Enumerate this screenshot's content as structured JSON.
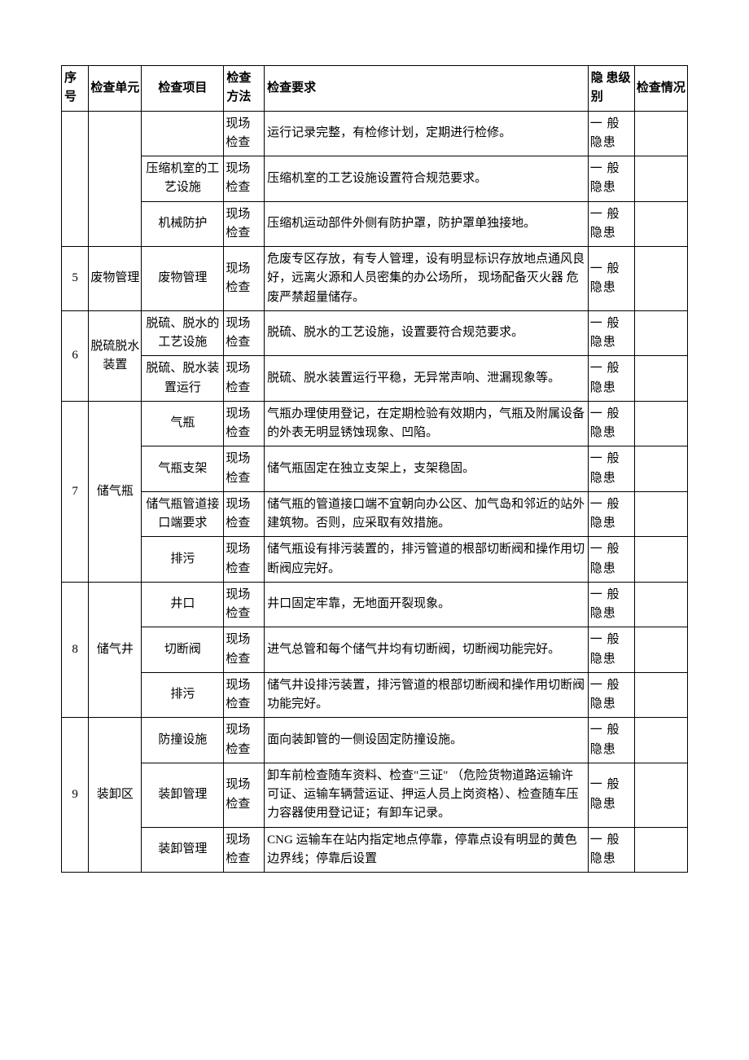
{
  "headers": {
    "seq": "序号",
    "unit": "检查单元",
    "item": "检查项目",
    "method": "检查方法",
    "req": "检查要求",
    "level": "隐 患级别",
    "status": "检查情况"
  },
  "rows": [
    {
      "seq": "",
      "unit": "",
      "item": "",
      "method": "现场检查",
      "req": "运行记录完整，有检修计划，定期进行检修。",
      "level": "一 般隐患",
      "status": ""
    },
    {
      "seq": "",
      "unit": "",
      "item": "压缩机室的工艺设施",
      "method": "现场检查",
      "req": "压缩机室的工艺设施设置符合规范要求。",
      "level": "一 般隐患",
      "status": ""
    },
    {
      "seq": "",
      "unit": "",
      "item": "机械防护",
      "method": "现场检查",
      "req": "压缩机运动部件外侧有防护罩，防护罩单独接地。",
      "level": "一 般隐患",
      "status": ""
    },
    {
      "seq": "5",
      "unit": "废物管理",
      "item": "废物管理",
      "method": "现场检查",
      "req": "危废专区存放，有专人管理，设有明显标识存放地点通风良好，远离火源和人员密集的办公场所， 现场配备灭火器 危废严禁超量储存。",
      "level": "一 般隐患",
      "status": ""
    },
    {
      "seq": "6",
      "unit": "脱硫脱水装置",
      "unit_rowspan": 2,
      "item": "脱硫、脱水的工艺设施",
      "method": "现场检查",
      "req": "脱硫、脱水的工艺设施，设置要符合规范要求。",
      "level": "一 般隐患",
      "status": ""
    },
    {
      "item": "脱硫、脱水装置运行",
      "method": "现场检查",
      "req": "脱硫、脱水装置运行平稳，无异常声响、泄漏现象等。",
      "level": "一 般隐患",
      "status": ""
    },
    {
      "seq": "7",
      "unit": "储气瓶",
      "unit_rowspan": 4,
      "item": "气瓶",
      "method": "现场检查",
      "req": "气瓶办理使用登记，在定期检验有效期内，气瓶及附属设备的外表无明显锈蚀现象、凹陷。",
      "level": "一 般隐患",
      "status": ""
    },
    {
      "item": "气瓶支架",
      "method": "现场检查",
      "req": "储气瓶固定在独立支架上，支架稳固。",
      "level": "一 般隐患",
      "status": ""
    },
    {
      "item": "储气瓶管道接口端要求",
      "method": "现场检查",
      "req": "储气瓶的管道接口端不宜朝向办公区、加气岛和邻近的站外建筑物。否则，应采取有效措施。",
      "level": "一 般隐患",
      "status": ""
    },
    {
      "item": "排污",
      "method": "现场检查",
      "req": "储气瓶设有排污装置的，排污管道的根部切断阀和操作用切断阀应完好。",
      "level": "一 般隐患",
      "status": ""
    },
    {
      "seq": "8",
      "unit": "储气井",
      "unit_rowspan": 3,
      "item": "井口",
      "method": "现场检查",
      "req": "井口固定牢靠，无地面开裂现象。",
      "level": "一 般隐患",
      "status": ""
    },
    {
      "item": "切断阀",
      "method": "现场检查",
      "req": "进气总管和每个储气井均有切断阀，切断阀功能完好。",
      "level": "一 般隐患",
      "status": ""
    },
    {
      "item": "排污",
      "method": "现场检查",
      "req": "储气井设排污装置，排污管道的根部切断阀和操作用切断阀功能完好。",
      "level": "一 般隐患",
      "status": ""
    },
    {
      "seq": "9",
      "unit": "装卸区",
      "unit_rowspan": 3,
      "item": "防撞设施",
      "method": "现场检查",
      "req": "面向装卸管的一侧设固定防撞设施。",
      "level": "一 般隐患",
      "status": ""
    },
    {
      "item": "装卸管理",
      "method": "现场检查",
      "req": "卸车前检查随车资料、检查\"三证\" （危险货物道路运输许可证、运输车辆营运证、押运人员上岗资格）、检查随车压力容器使用登记证；有卸车记录。",
      "level": "一 般隐患",
      "status": ""
    },
    {
      "item": "装卸管理",
      "method": "现场检查",
      "req": "CNG 运输车在站内指定地点停靠，停靠点设有明显的黄色边界线；停靠后设置",
      "level": "一 般隐患",
      "status": ""
    }
  ],
  "table_style": {
    "border_color": "#000000",
    "background_color": "#ffffff",
    "text_color": "#000000",
    "font_size": 15,
    "col_widths": {
      "seq": 28,
      "unit": 55,
      "item": 85,
      "method": 42,
      "req": 335,
      "level": 48,
      "status": 55
    }
  }
}
